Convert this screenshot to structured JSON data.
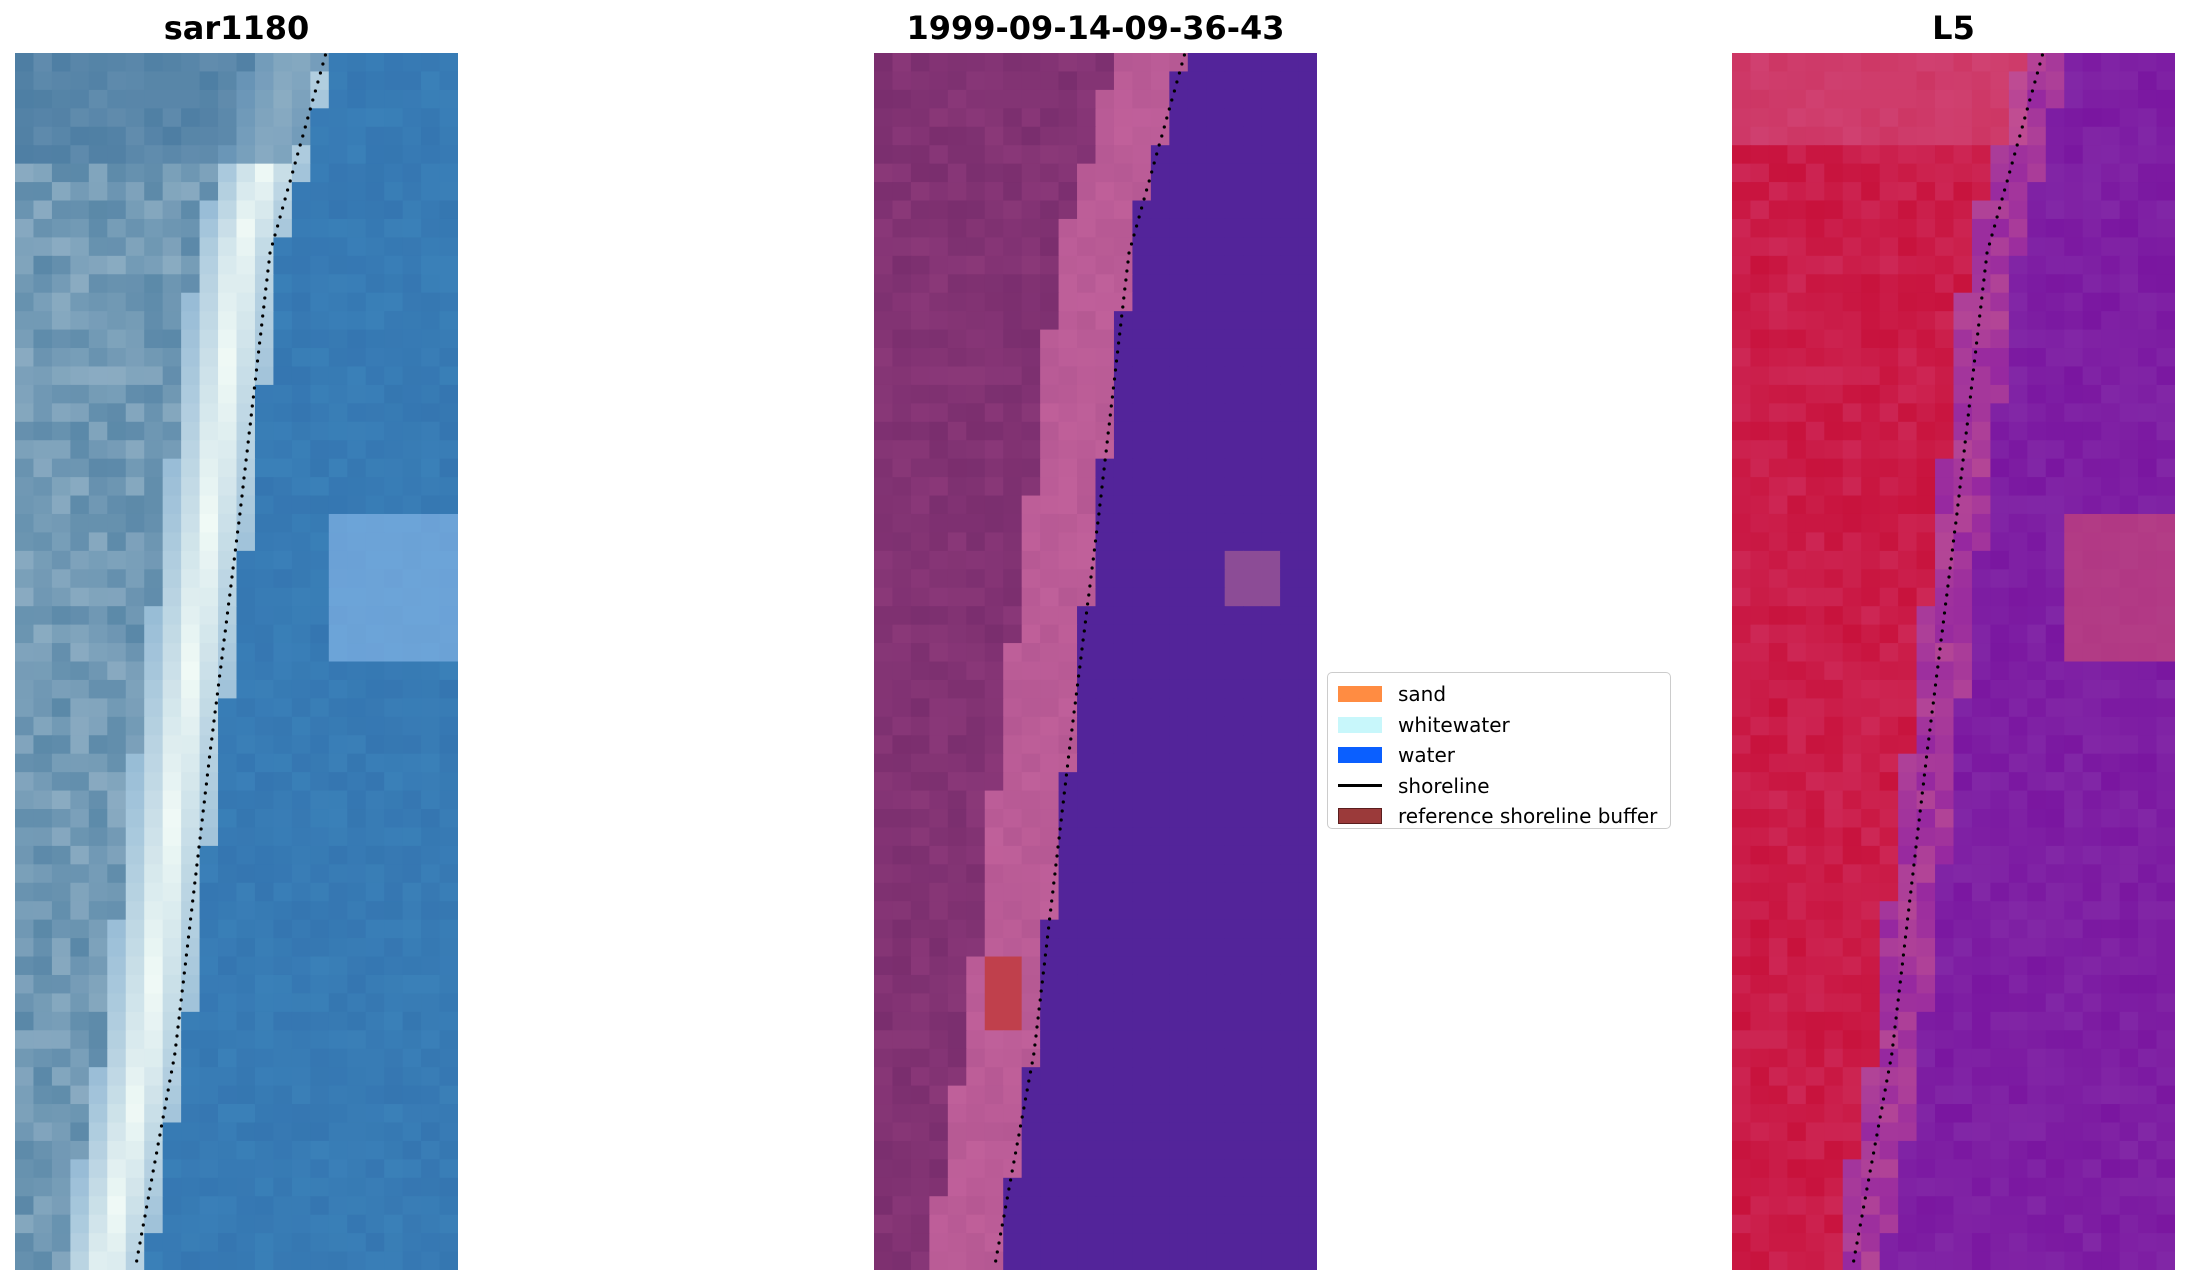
{
  "panels": [
    {
      "title": "sar1180",
      "style": "rgb"
    },
    {
      "title": "1999-09-14-09-36-43",
      "style": "classified"
    },
    {
      "title": "L5",
      "style": "mndwi"
    }
  ],
  "legend": {
    "items": [
      {
        "label": "sand",
        "color": "#ff8c42",
        "kind": "patch"
      },
      {
        "label": "whitewater",
        "color": "#c8f7fb",
        "kind": "patch"
      },
      {
        "label": "water",
        "color": "#0a5fff",
        "kind": "patch"
      },
      {
        "label": "shoreline",
        "color": "#000000",
        "kind": "line"
      },
      {
        "label": "reference shoreline buffer",
        "color": "#9b3a3a",
        "kind": "patch"
      }
    ]
  },
  "colors": {
    "rgb_water": "#3a82b8",
    "rgb_foam": "#f4fbf6",
    "rgb_land": "#5a88a8",
    "class_water": "#53249a",
    "class_land": "#7a2e6e",
    "class_sand_overlay": "#c0609a",
    "class_buffer": "#c0404c",
    "mndwi_land": "#c8123c",
    "mndwi_water": "#7a16a0"
  }
}
